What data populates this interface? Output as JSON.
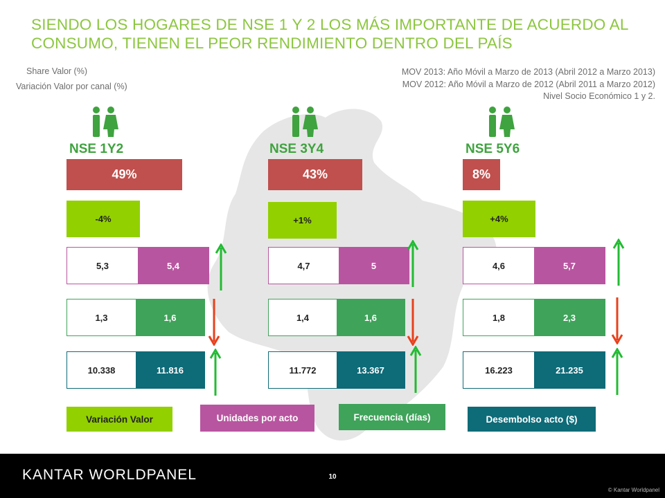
{
  "title": "SIENDO LOS HOGARES DE NSE 1 Y 2 LOS MÁS IMPORTANTE DE ACUERDO AL CONSUMO, TIENEN EL PEOR RENDIMIENTO DENTRO DEL PAÍS",
  "legend": {
    "share": "Share Valor (%)",
    "variation": "Variación Valor por canal (%)"
  },
  "notes": [
    "MOV 2013: Año Móvil a Marzo de 2013 (Abril 2012 a Marzo 2013)",
    "MOV 2012: Año Móvil a Marzo de 2012 (Abril 2011 a Marzo 2012)",
    "Nivel Socio Económico 1 y 2."
  ],
  "colors": {
    "title": "#8cc63f",
    "share": "#c0504d",
    "variation": "#92d000",
    "units": "#b855a0",
    "frequency": "#3fa35a",
    "disbursement": "#0e6b78",
    "arrow_up": "#22bb33",
    "arrow_down": "#e8401c"
  },
  "segments": [
    {
      "label": "NSE 1Y2",
      "icon": "people-icon",
      "share": "49%",
      "share_pct": 49,
      "variation": "-4%",
      "units": {
        "mov2012": "5,3",
        "mov2013": "5,4",
        "trend": "up"
      },
      "frequency": {
        "mov2012": "1,3",
        "mov2013": "1,6",
        "trend": "down"
      },
      "disbursement": {
        "mov2012": "10.338",
        "mov2013": "11.816",
        "trend": "up"
      }
    },
    {
      "label": "NSE 3Y4",
      "icon": "people-icon",
      "share": "43%",
      "share_pct": 43,
      "variation": "+1%",
      "units": {
        "mov2012": "4,7",
        "mov2013": "5",
        "trend": "up"
      },
      "frequency": {
        "mov2012": "1,4",
        "mov2013": "1,6",
        "trend": "down"
      },
      "disbursement": {
        "mov2012": "11.772",
        "mov2013": "13.367",
        "trend": "up"
      }
    },
    {
      "label": "NSE 5Y6",
      "icon": "people-icon",
      "share": "8%",
      "share_pct": 8,
      "variation": "+4%",
      "units": {
        "mov2012": "4,6",
        "mov2013": "5,7",
        "trend": "up"
      },
      "frequency": {
        "mov2012": "1,8",
        "mov2013": "2,3",
        "trend": "down"
      },
      "disbursement": {
        "mov2012": "16.223",
        "mov2013": "21.235",
        "trend": "up"
      }
    }
  ],
  "bottom_legend": {
    "variation": "Variación Valor",
    "units": "Unidades por acto",
    "frequency": "Frecuencia (días)",
    "disbursement": "Desembolso acto ($)"
  },
  "footer": {
    "logo": "KANTAR WORLDPANEL",
    "page": "10",
    "copyright": "© Kantar Worldpanel"
  }
}
